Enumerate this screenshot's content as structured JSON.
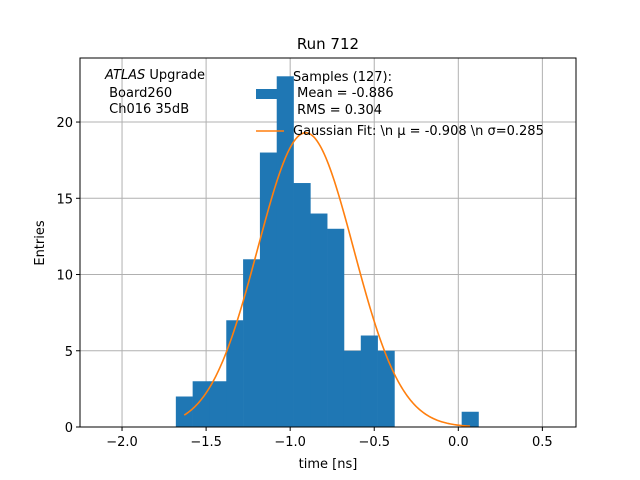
{
  "chart_data": {
    "type": "bar",
    "title": "Run 712",
    "xlabel": "time [ns]",
    "ylabel": "Entries",
    "xlim": [
      -2.25,
      0.7
    ],
    "ylim": [
      0,
      24.2
    ],
    "grid": true,
    "legend_placement": "upper-center",
    "xticks": [
      -2.0,
      -1.5,
      -1.0,
      -0.5,
      0.0,
      0.5
    ],
    "xtick_labels": [
      "−2.0",
      "−1.5",
      "−1.0",
      "−0.5",
      "0.0",
      "0.5"
    ],
    "yticks": [
      0,
      5,
      10,
      15,
      20
    ],
    "ytick_labels": [
      "0",
      "5",
      "10",
      "15",
      "20"
    ],
    "bin_edges": [
      -1.68,
      -1.58,
      -1.48,
      -1.38,
      -1.28,
      -1.18,
      -1.08,
      -0.98,
      -0.88,
      -0.78,
      -0.68,
      -0.58,
      -0.48,
      -0.38,
      -0.28,
      -0.18,
      -0.08,
      0.02,
      0.12
    ],
    "counts": [
      2,
      3,
      3,
      7,
      11,
      18,
      23,
      16,
      14,
      13,
      5,
      6,
      5,
      0,
      0,
      0,
      0,
      1
    ],
    "series": [
      {
        "name_lines": [
          "Samples (127):",
          " Mean = -0.886",
          " RMS = 0.304"
        ],
        "color": "#1f77b4",
        "kind": "histogram"
      },
      {
        "name_lines": [
          "Gaussian Fit: \\n μ = -0.908 \\n σ=0.285"
        ],
        "color": "#ff7f0e",
        "kind": "line",
        "mu": -0.908,
        "sigma": 0.285,
        "amplitude": 19.3,
        "x_range": [
          -1.63,
          0.07
        ]
      }
    ],
    "annotation_lines": [
      "ATLAS",
      " Upgrade",
      " Board260",
      " Ch016 35dB"
    ]
  }
}
